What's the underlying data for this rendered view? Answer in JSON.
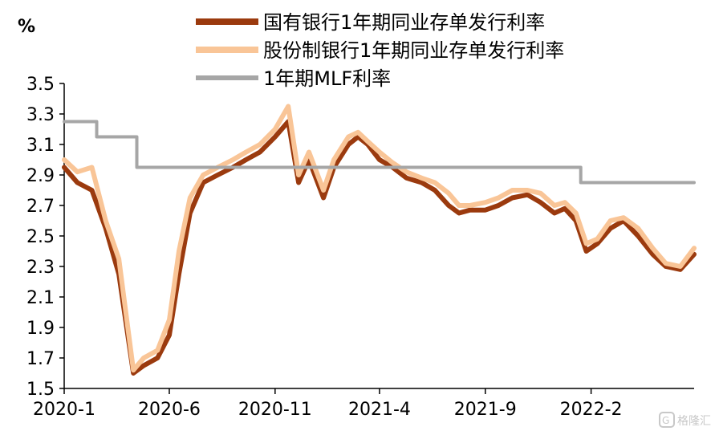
{
  "chart_data": {
    "type": "line",
    "ylabel": "%",
    "ylim": [
      1.5,
      3.5
    ],
    "yticks": [
      "1.5",
      "1.7",
      "1.9",
      "2.1",
      "2.3",
      "2.5",
      "2.7",
      "2.9",
      "3.1",
      "3.3",
      "3.5"
    ],
    "x_start": "2020-01",
    "x_end": "2022-06",
    "xticks": [
      "2020-1",
      "2020-6",
      "2020-11",
      "2021-4",
      "2021-9",
      "2022-2"
    ],
    "legend_position": "top",
    "grid": false,
    "series": [
      {
        "name": "国有银行1年期同业存单发行利率",
        "color": "#9b3a0e",
        "x": [
          "2020-01",
          "2020-01-20",
          "2020-02-10",
          "2020-03-01",
          "2020-03-20",
          "2020-04-10",
          "2020-04-25",
          "2020-05-15",
          "2020-06-01",
          "2020-06-15",
          "2020-07-01",
          "2020-07-20",
          "2020-08-10",
          "2020-09-01",
          "2020-09-20",
          "2020-10-10",
          "2020-11-01",
          "2020-11-20",
          "2020-12-05",
          "2020-12-20",
          "2021-01-10",
          "2021-01-25",
          "2021-02-15",
          "2021-03-01",
          "2021-03-15",
          "2021-04-01",
          "2021-04-20",
          "2021-05-10",
          "2021-06-01",
          "2021-06-20",
          "2021-07-10",
          "2021-07-25",
          "2021-08-10",
          "2021-09-01",
          "2021-09-20",
          "2021-10-10",
          "2021-11-01",
          "2021-11-20",
          "2021-12-10",
          "2021-12-25",
          "2022-01-10",
          "2022-01-25",
          "2022-02-10",
          "2022-03-01",
          "2022-03-20",
          "2022-04-10",
          "2022-05-01",
          "2022-05-20",
          "2022-06-10",
          "2022-06-30"
        ],
        "y": [
          2.95,
          2.85,
          2.8,
          2.55,
          2.25,
          1.6,
          1.65,
          1.7,
          1.85,
          2.25,
          2.65,
          2.85,
          2.9,
          2.95,
          3.0,
          3.05,
          3.15,
          3.25,
          2.85,
          3.0,
          2.75,
          2.95,
          3.1,
          3.15,
          3.1,
          3.0,
          2.95,
          2.88,
          2.85,
          2.8,
          2.7,
          2.65,
          2.67,
          2.67,
          2.7,
          2.75,
          2.77,
          2.72,
          2.65,
          2.68,
          2.6,
          2.4,
          2.45,
          2.55,
          2.6,
          2.5,
          2.38,
          2.3,
          2.28,
          2.38
        ]
      },
      {
        "name": "股份制银行1年期同业存单发行利率",
        "color": "#f9c597",
        "x": [
          "2020-01",
          "2020-01-20",
          "2020-02-10",
          "2020-03-01",
          "2020-03-20",
          "2020-04-10",
          "2020-04-25",
          "2020-05-15",
          "2020-06-01",
          "2020-06-15",
          "2020-07-01",
          "2020-07-20",
          "2020-08-10",
          "2020-09-01",
          "2020-09-20",
          "2020-10-10",
          "2020-11-01",
          "2020-11-20",
          "2020-12-05",
          "2020-12-20",
          "2021-01-10",
          "2021-01-25",
          "2021-02-15",
          "2021-03-01",
          "2021-03-15",
          "2021-04-01",
          "2021-04-20",
          "2021-05-10",
          "2021-06-01",
          "2021-06-20",
          "2021-07-10",
          "2021-07-25",
          "2021-08-10",
          "2021-09-01",
          "2021-09-20",
          "2021-10-10",
          "2021-11-01",
          "2021-11-20",
          "2021-12-10",
          "2021-12-25",
          "2022-01-10",
          "2022-01-25",
          "2022-02-10",
          "2022-03-01",
          "2022-03-20",
          "2022-04-10",
          "2022-05-01",
          "2022-05-20",
          "2022-06-10",
          "2022-06-30"
        ],
        "y": [
          3.0,
          2.92,
          2.95,
          2.6,
          2.35,
          1.62,
          1.7,
          1.75,
          1.95,
          2.4,
          2.75,
          2.9,
          2.95,
          3.0,
          3.05,
          3.1,
          3.2,
          3.35,
          2.9,
          3.05,
          2.8,
          3.0,
          3.15,
          3.18,
          3.12,
          3.05,
          2.98,
          2.92,
          2.88,
          2.85,
          2.78,
          2.7,
          2.7,
          2.72,
          2.75,
          2.8,
          2.8,
          2.78,
          2.7,
          2.72,
          2.65,
          2.45,
          2.48,
          2.6,
          2.62,
          2.55,
          2.42,
          2.32,
          2.3,
          2.42
        ]
      },
      {
        "name": "1年期MLF利率",
        "color": "#a6a6a6",
        "x": [
          "2020-01",
          "2020-02-17",
          "2020-02-17",
          "2020-04-15",
          "2020-04-15",
          "2022-01-17",
          "2022-01-17",
          "2022-06-30"
        ],
        "y": [
          3.25,
          3.25,
          3.15,
          3.15,
          2.95,
          2.95,
          2.85,
          2.85
        ]
      }
    ]
  },
  "watermark": "格隆汇"
}
